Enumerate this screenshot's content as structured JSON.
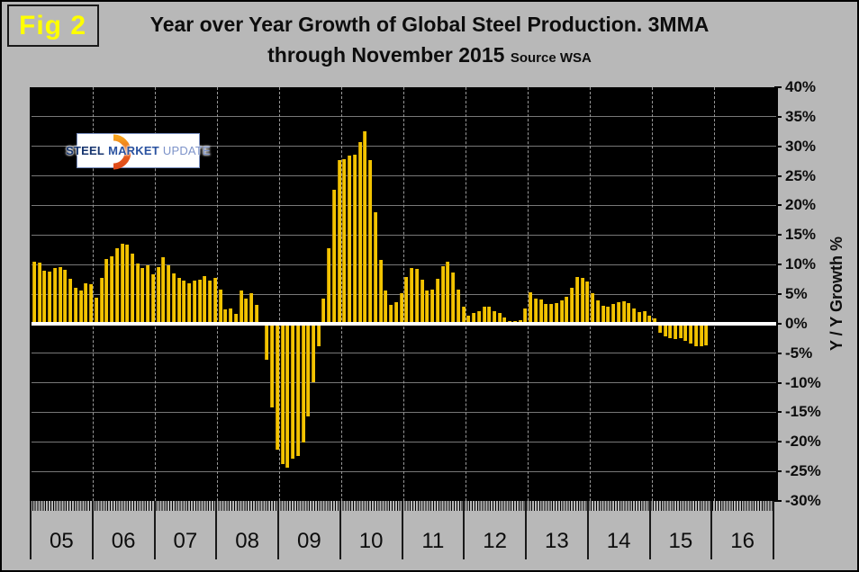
{
  "figure_label": "Fig 2",
  "title": {
    "line1": "Year over Year Growth of Global Steel Production. 3MMA",
    "line2": "through November 2015",
    "source": "Source WSA"
  },
  "logo": {
    "words": [
      "STEEL",
      "MARKET",
      "UPDATE"
    ]
  },
  "y_axis": {
    "title": "Y / Y Growth %",
    "tick_labels": [
      "40%",
      "35%",
      "30%",
      "25%",
      "20%",
      "15%",
      "10%",
      "5%",
      "0%",
      "-5%",
      "-10%",
      "-15%",
      "-20%",
      "-25%",
      "-30%"
    ],
    "max": 40,
    "min": -30,
    "step": 5
  },
  "x_axis": {
    "year_labels": [
      "05",
      "06",
      "07",
      "08",
      "09",
      "10",
      "11",
      "12",
      "13",
      "14",
      "15",
      "16"
    ]
  },
  "colors": {
    "background": "#b8b8b8",
    "plot_background": "#000000",
    "bar": "#f2c300",
    "bar_edge": "#c59800",
    "gridline": "#787878",
    "zero_line": "#ffffff",
    "year_divider_dash": "#9a9a9a",
    "fig_label_text": "#ffff00",
    "title_text": "#0d0d0d",
    "logo_orange": "#e8611c",
    "logo_orange_light": "#f7a21d",
    "logo_navy": "#17356f",
    "logo_blue": "#2a52a0",
    "logo_light_blue": "#7d93c9"
  },
  "chart_data": {
    "type": "bar",
    "title": "Year over Year Growth of Global Steel Production. 3MMA through November 2015",
    "source": "WSA",
    "xlabel": "",
    "ylabel": "Y / Y Growth %",
    "unit": "%",
    "ylim": [
      -30,
      40
    ],
    "ytick_step": 5,
    "grid": true,
    "axis_years": [
      "05",
      "06",
      "07",
      "08",
      "09",
      "10",
      "11",
      "12",
      "13",
      "14",
      "15",
      "16"
    ],
    "data_start": "2005-01",
    "data_end": "2015-11",
    "monthly_values_by_year": {
      "2005": [
        10.5,
        10.4,
        8.9,
        8.8,
        9.4,
        9.5,
        9.1,
        7.6,
        6.0,
        5.6,
        6.8,
        6.7
      ],
      "2006": [
        4.4,
        7.8,
        10.9,
        11.4,
        12.8,
        13.5,
        13.3,
        11.9,
        10.1,
        9.4,
        9.9,
        8.4
      ],
      "2007": [
        9.5,
        11.3,
        9.9,
        8.5,
        7.7,
        7.3,
        6.9,
        7.3,
        7.5,
        8.0,
        7.3,
        7.8
      ],
      "2008": [
        5.8,
        2.4,
        2.6,
        1.6,
        5.6,
        4.3,
        5.1,
        3.2,
        0.3,
        -6.1,
        -14.2,
        -21.3
      ],
      "2009": [
        -23.7,
        -24.3,
        -22.8,
        -22.4,
        -20.1,
        -15.7,
        -9.9,
        -3.8,
        4.3,
        12.8,
        22.6,
        27.7
      ],
      "2010": [
        27.9,
        28.5,
        28.6,
        30.7,
        32.5,
        27.7,
        18.9,
        10.8,
        5.6,
        3.1,
        3.7,
        5.1
      ],
      "2011": [
        7.9,
        9.4,
        9.2,
        7.4,
        5.6,
        5.7,
        7.6,
        9.7,
        10.5,
        8.7,
        5.8,
        2.8
      ],
      "2012": [
        1.4,
        1.8,
        2.1,
        2.8,
        2.9,
        2.1,
        1.8,
        1.1,
        0.5,
        0.4,
        0.6,
        2.5
      ],
      "2013": [
        5.3,
        4.3,
        4.1,
        3.3,
        3.4,
        3.5,
        4.0,
        4.5,
        6.1,
        7.9,
        7.7,
        7.2
      ],
      "2014": [
        5.1,
        3.9,
        3.0,
        2.8,
        3.3,
        3.6,
        3.8,
        3.5,
        2.6,
        1.9,
        2.1,
        1.4
      ],
      "2015": [
        0.9,
        -1.6,
        -2.1,
        -2.4,
        -2.6,
        -2.4,
        -2.9,
        -3.4,
        -3.8,
        -3.8,
        -3.7
      ]
    }
  }
}
